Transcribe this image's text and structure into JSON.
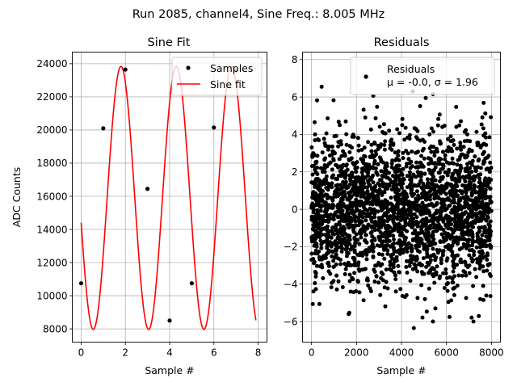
{
  "figure": {
    "suptitle": "Run 2085, channel4, Sine Freq.: 8.005 MHz"
  },
  "colors": {
    "samples": "#000000",
    "fit": "#ff0000",
    "grid": "#b0b0b0",
    "residuals": "#000000"
  },
  "chart_data": [
    {
      "type": "line",
      "title": "Sine Fit",
      "xlabel": "Sample #",
      "ylabel": "ADC Counts",
      "xlim": [
        -0.4,
        8.4
      ],
      "ylim": [
        7200,
        24700
      ],
      "grid": true,
      "xticks": [
        "0",
        "2",
        "4",
        "6",
        "8"
      ],
      "yticks": [
        "8000",
        "10000",
        "12000",
        "14000",
        "16000",
        "18000",
        "20000",
        "22000",
        "24000"
      ],
      "legend": {
        "position": "top-right",
        "entries": [
          "Samples",
          "Sine fit"
        ]
      },
      "series": [
        {
          "name": "Samples",
          "style": "markers",
          "x": [
            0,
            1,
            2,
            3,
            4,
            5,
            6,
            7
          ],
          "y": [
            10750,
            20100,
            23650,
            16450,
            8500,
            10750,
            20150,
            23600
          ]
        },
        {
          "name": "Sine fit",
          "style": "line",
          "model": {
            "offset": 15900,
            "amplitude": 7940,
            "cycles_per_sample": 0.4,
            "peak_at": 1.8
          },
          "x_range": [
            0,
            7.9
          ]
        }
      ]
    },
    {
      "type": "scatter",
      "title": "Residuals",
      "xlabel": "Sample #",
      "ylabel": "",
      "xlim": [
        -400,
        8400
      ],
      "ylim": [
        -7.1,
        8.4
      ],
      "grid": true,
      "xticks": [
        "0",
        "2000",
        "4000",
        "6000",
        "8000"
      ],
      "yticks": [
        "−6",
        "−4",
        "−2",
        "0",
        "2",
        "4",
        "6",
        "8"
      ],
      "legend": {
        "position": "top-right",
        "entries": [
          "Residuals",
          "μ = -0.0, σ = 1.96"
        ]
      },
      "series": [
        {
          "name": "Residuals",
          "n_points": 8000,
          "mean": 0.0,
          "std": 1.96,
          "x_range": [
            0,
            8000
          ],
          "notable_points": [
            {
              "x": 450,
              "y": 6.55
            },
            {
              "x": 2450,
              "y": 7.1
            },
            {
              "x": 4500,
              "y": 6.3
            },
            {
              "x": 5400,
              "y": 6.15
            },
            {
              "x": 4550,
              "y": -6.35
            },
            {
              "x": 5400,
              "y": -6.0
            },
            {
              "x": 7200,
              "y": -6.0
            }
          ]
        }
      ]
    }
  ]
}
